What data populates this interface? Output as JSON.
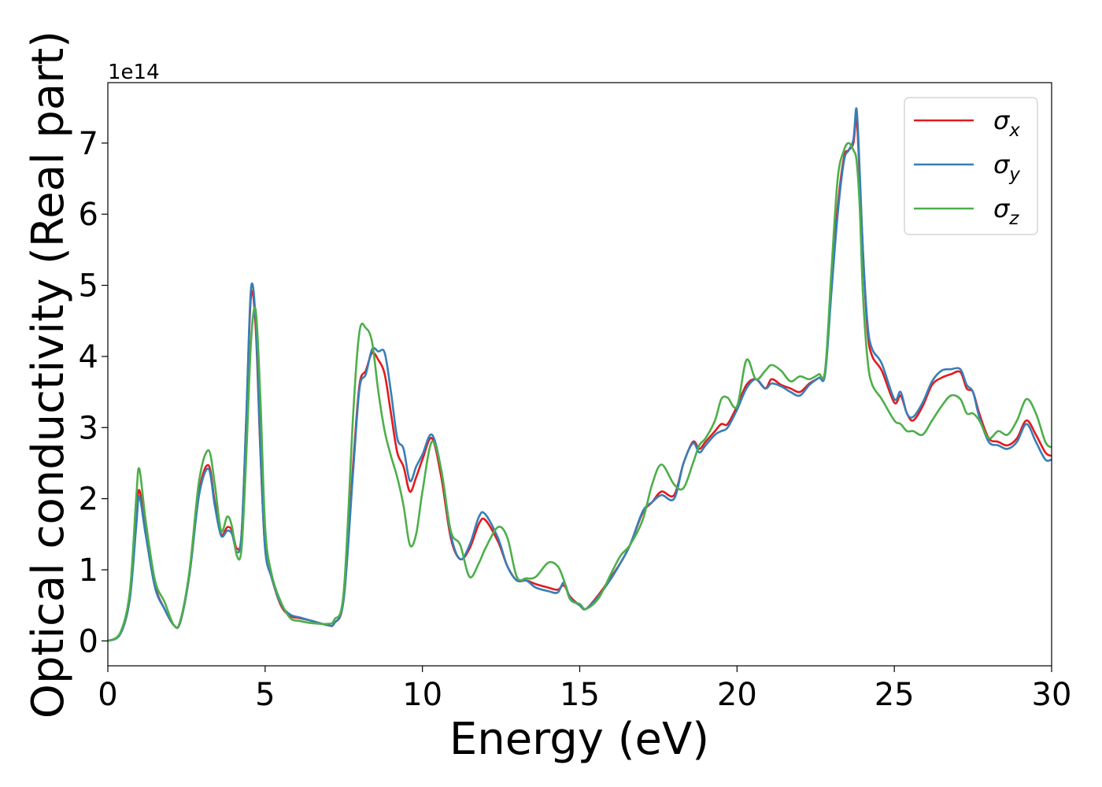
{
  "chart_data": {
    "type": "line",
    "xlabel": "Energy (eV)",
    "ylabel": "Optical conductivity (Real part)",
    "y_scale_label": "1e14",
    "y_scale_factor": 100000000000000.0,
    "xlim": [
      0,
      30
    ],
    "ylim": [
      -0.35,
      7.85
    ],
    "xticks": [
      0,
      5,
      10,
      15,
      20,
      25,
      30
    ],
    "xtick_labels": [
      "0",
      "5",
      "10",
      "15",
      "20",
      "25",
      "30"
    ],
    "yticks": [
      0,
      1,
      2,
      3,
      4,
      5,
      6,
      7
    ],
    "ytick_labels": [
      "0",
      "1",
      "2",
      "3",
      "4",
      "5",
      "6",
      "7"
    ],
    "grid": false,
    "legend_position": "top-right",
    "series": [
      {
        "name": "σx",
        "name_main": "σ",
        "name_sub": "x",
        "color": "#e41a1c",
        "x": [
          0,
          0.4,
          0.7,
          0.9,
          1.0,
          1.2,
          1.5,
          1.8,
          2.1,
          2.3,
          2.6,
          2.9,
          3.2,
          3.4,
          3.6,
          3.8,
          3.95,
          4.1,
          4.25,
          4.4,
          4.55,
          4.7,
          4.85,
          5.0,
          5.2,
          5.5,
          5.8,
          6.1,
          6.5,
          7.0,
          7.2,
          7.5,
          7.8,
          8.0,
          8.2,
          8.4,
          8.6,
          8.8,
          9.0,
          9.2,
          9.4,
          9.6,
          9.8,
          10.0,
          10.3,
          10.6,
          10.9,
          11.2,
          11.5,
          11.8,
          12.0,
          12.4,
          12.7,
          13.0,
          13.3,
          13.6,
          14.0,
          14.3,
          14.5,
          14.7,
          15.0,
          15.2,
          15.6,
          16.0,
          16.3,
          16.6,
          17.0,
          17.3,
          17.6,
          18.0,
          18.3,
          18.6,
          18.8,
          19.0,
          19.3,
          19.5,
          19.7,
          20.0,
          20.3,
          20.6,
          20.9,
          21.1,
          21.4,
          21.7,
          22.0,
          22.3,
          22.6,
          22.8,
          23.0,
          23.2,
          23.4,
          23.55,
          23.7,
          23.8,
          23.9,
          24.0,
          24.15,
          24.3,
          24.6,
          25.0,
          25.2,
          25.4,
          25.6,
          25.9,
          26.2,
          26.5,
          26.8,
          27.1,
          27.3,
          27.5,
          27.7,
          28.0,
          28.3,
          28.6,
          28.9,
          29.2,
          29.5,
          29.8,
          30.0
        ],
        "y": [
          0.0,
          0.1,
          0.6,
          1.7,
          2.12,
          1.55,
          0.78,
          0.45,
          0.22,
          0.26,
          0.95,
          2.1,
          2.47,
          1.95,
          1.5,
          1.6,
          1.55,
          1.3,
          1.5,
          3.1,
          4.85,
          4.4,
          2.65,
          1.3,
          0.9,
          0.5,
          0.35,
          0.32,
          0.28,
          0.22,
          0.25,
          0.6,
          2.5,
          3.6,
          3.8,
          4.05,
          3.95,
          3.75,
          3.2,
          2.65,
          2.45,
          2.1,
          2.3,
          2.55,
          2.85,
          2.3,
          1.45,
          1.15,
          1.3,
          1.65,
          1.7,
          1.4,
          1.05,
          0.85,
          0.85,
          0.8,
          0.75,
          0.72,
          0.78,
          0.62,
          0.5,
          0.45,
          0.65,
          0.9,
          1.1,
          1.35,
          1.8,
          1.95,
          2.1,
          2.05,
          2.5,
          2.8,
          2.7,
          2.8,
          2.95,
          3.05,
          3.05,
          3.3,
          3.6,
          3.68,
          3.55,
          3.68,
          3.6,
          3.55,
          3.5,
          3.62,
          3.7,
          3.8,
          5.0,
          6.1,
          6.8,
          6.9,
          7.0,
          7.35,
          6.5,
          5.5,
          4.35,
          4.0,
          3.8,
          3.35,
          3.45,
          3.2,
          3.1,
          3.3,
          3.6,
          3.7,
          3.75,
          3.78,
          3.55,
          3.5,
          3.2,
          2.85,
          2.8,
          2.75,
          2.85,
          3.1,
          2.9,
          2.65,
          2.6
        ]
      },
      {
        "name": "σy",
        "name_main": "σ",
        "name_sub": "y",
        "color": "#377eb8",
        "x": [
          0,
          0.4,
          0.7,
          0.9,
          1.0,
          1.2,
          1.5,
          1.8,
          2.1,
          2.3,
          2.6,
          2.9,
          3.2,
          3.4,
          3.6,
          3.8,
          3.95,
          4.1,
          4.25,
          4.4,
          4.55,
          4.7,
          4.85,
          5.0,
          5.2,
          5.5,
          5.8,
          6.1,
          6.5,
          7.0,
          7.2,
          7.5,
          7.8,
          8.0,
          8.2,
          8.4,
          8.6,
          8.8,
          9.0,
          9.2,
          9.4,
          9.6,
          9.8,
          10.0,
          10.3,
          10.6,
          10.9,
          11.2,
          11.5,
          11.8,
          12.0,
          12.4,
          12.7,
          13.0,
          13.3,
          13.6,
          14.0,
          14.3,
          14.5,
          14.7,
          15.0,
          15.2,
          15.6,
          16.0,
          16.3,
          16.6,
          17.0,
          17.3,
          17.6,
          18.0,
          18.3,
          18.6,
          18.8,
          19.0,
          19.3,
          19.5,
          19.7,
          20.0,
          20.3,
          20.6,
          20.9,
          21.1,
          21.4,
          21.7,
          22.0,
          22.3,
          22.6,
          22.8,
          23.0,
          23.2,
          23.4,
          23.55,
          23.7,
          23.8,
          23.9,
          24.0,
          24.15,
          24.3,
          24.6,
          25.0,
          25.2,
          25.4,
          25.6,
          25.9,
          26.2,
          26.5,
          26.8,
          27.1,
          27.3,
          27.5,
          27.7,
          28.0,
          28.3,
          28.6,
          28.9,
          29.2,
          29.5,
          29.8,
          30.0
        ],
        "y": [
          0.0,
          0.1,
          0.6,
          1.6,
          2.03,
          1.5,
          0.75,
          0.45,
          0.22,
          0.26,
          0.95,
          2.05,
          2.42,
          1.9,
          1.48,
          1.55,
          1.5,
          1.25,
          1.5,
          3.15,
          4.95,
          4.5,
          2.7,
          1.3,
          0.9,
          0.52,
          0.37,
          0.33,
          0.28,
          0.22,
          0.25,
          0.6,
          2.4,
          3.55,
          3.75,
          4.1,
          4.07,
          4.05,
          3.5,
          2.85,
          2.7,
          2.25,
          2.45,
          2.62,
          2.9,
          2.4,
          1.5,
          1.15,
          1.35,
          1.75,
          1.78,
          1.45,
          1.05,
          0.85,
          0.85,
          0.75,
          0.7,
          0.68,
          0.82,
          0.6,
          0.5,
          0.45,
          0.63,
          0.88,
          1.1,
          1.35,
          1.82,
          1.95,
          2.05,
          2.0,
          2.5,
          2.78,
          2.65,
          2.75,
          2.9,
          2.95,
          3.0,
          3.25,
          3.55,
          3.68,
          3.55,
          3.62,
          3.58,
          3.5,
          3.45,
          3.6,
          3.7,
          3.75,
          4.9,
          6.0,
          6.75,
          6.9,
          7.05,
          7.48,
          6.6,
          5.5,
          4.45,
          4.1,
          3.9,
          3.4,
          3.5,
          3.2,
          3.15,
          3.35,
          3.65,
          3.8,
          3.82,
          3.82,
          3.6,
          3.5,
          3.15,
          2.8,
          2.75,
          2.7,
          2.8,
          3.05,
          2.8,
          2.55,
          2.55
        ]
      },
      {
        "name": "σz",
        "name_main": "σ",
        "name_sub": "z",
        "color": "#4daf4a",
        "x": [
          0,
          0.4,
          0.7,
          0.9,
          1.0,
          1.2,
          1.5,
          1.8,
          2.1,
          2.3,
          2.6,
          2.9,
          3.2,
          3.4,
          3.6,
          3.8,
          3.95,
          4.1,
          4.25,
          4.4,
          4.55,
          4.7,
          4.85,
          5.0,
          5.2,
          5.5,
          5.8,
          6.1,
          6.5,
          7.0,
          7.2,
          7.5,
          7.8,
          8.0,
          8.2,
          8.4,
          8.6,
          8.8,
          9.0,
          9.2,
          9.4,
          9.6,
          9.8,
          10.0,
          10.3,
          10.6,
          10.9,
          11.2,
          11.5,
          11.8,
          12.0,
          12.4,
          12.7,
          13.0,
          13.3,
          13.6,
          14.0,
          14.3,
          14.5,
          14.7,
          15.0,
          15.2,
          15.6,
          16.0,
          16.3,
          16.6,
          17.0,
          17.3,
          17.6,
          18.0,
          18.3,
          18.6,
          18.8,
          19.0,
          19.3,
          19.5,
          19.7,
          20.0,
          20.3,
          20.6,
          20.9,
          21.1,
          21.4,
          21.7,
          22.0,
          22.3,
          22.6,
          22.8,
          23.0,
          23.2,
          23.4,
          23.55,
          23.7,
          23.8,
          23.9,
          24.0,
          24.15,
          24.3,
          24.6,
          25.0,
          25.2,
          25.4,
          25.6,
          25.9,
          26.2,
          26.5,
          26.8,
          27.1,
          27.3,
          27.5,
          27.7,
          28.0,
          28.3,
          28.6,
          28.9,
          29.2,
          29.5,
          29.8,
          30.0
        ],
        "y": [
          0.0,
          0.12,
          0.7,
          2.0,
          2.42,
          1.7,
          0.85,
          0.55,
          0.22,
          0.28,
          1.0,
          2.25,
          2.68,
          2.2,
          1.55,
          1.75,
          1.6,
          1.2,
          1.3,
          2.6,
          4.2,
          4.65,
          3.4,
          1.6,
          0.95,
          0.55,
          0.32,
          0.28,
          0.25,
          0.24,
          0.3,
          0.7,
          3.2,
          4.35,
          4.4,
          4.2,
          3.5,
          2.95,
          2.6,
          2.3,
          1.9,
          1.35,
          1.5,
          2.1,
          2.8,
          2.4,
          1.55,
          1.35,
          0.9,
          1.1,
          1.3,
          1.6,
          1.45,
          0.9,
          0.88,
          0.9,
          1.1,
          1.05,
          0.85,
          0.58,
          0.52,
          0.45,
          0.6,
          0.95,
          1.2,
          1.35,
          1.7,
          2.2,
          2.48,
          2.2,
          2.15,
          2.5,
          2.75,
          2.85,
          3.1,
          3.4,
          3.42,
          3.3,
          3.95,
          3.68,
          3.8,
          3.88,
          3.8,
          3.65,
          3.72,
          3.68,
          3.75,
          3.8,
          5.2,
          6.5,
          6.9,
          7.0,
          6.9,
          6.75,
          6.1,
          4.9,
          3.95,
          3.6,
          3.4,
          3.1,
          3.05,
          2.95,
          2.95,
          2.9,
          3.1,
          3.3,
          3.45,
          3.4,
          3.2,
          3.2,
          3.1,
          2.85,
          2.95,
          2.9,
          3.1,
          3.4,
          3.2,
          2.8,
          2.72
        ]
      }
    ]
  }
}
